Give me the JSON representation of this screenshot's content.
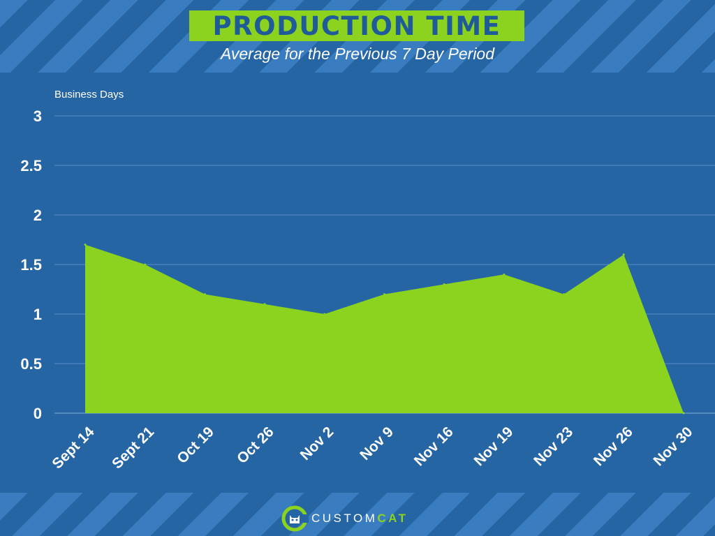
{
  "chart_data": {
    "type": "area",
    "title": "PRODUCTION TIME",
    "subtitle": "Average for the Previous 7 Day Period",
    "ylabel": "Business Days",
    "xlabel": "",
    "categories": [
      "Sept 14",
      "Sept 21",
      "Oct 19",
      "Oct 26",
      "Nov 2",
      "Nov 9",
      "Nov 16",
      "Nov 19",
      "Nov 23",
      "Nov 26",
      "Nov 30"
    ],
    "values": [
      1.7,
      1.5,
      1.2,
      1.1,
      1.0,
      1.2,
      1.3,
      1.4,
      1.2,
      1.6,
      0
    ],
    "yticks": [
      "0",
      "0.5",
      "1",
      "1.5",
      "2",
      "2.5",
      "3"
    ],
    "ylim": [
      0,
      3
    ],
    "grid": true,
    "colors": {
      "fill": "#8cd31f",
      "grid": "#5a8fc7",
      "background": "#2665a4"
    }
  },
  "logo": {
    "part1": "CUSTOM",
    "part2": "CAT"
  }
}
